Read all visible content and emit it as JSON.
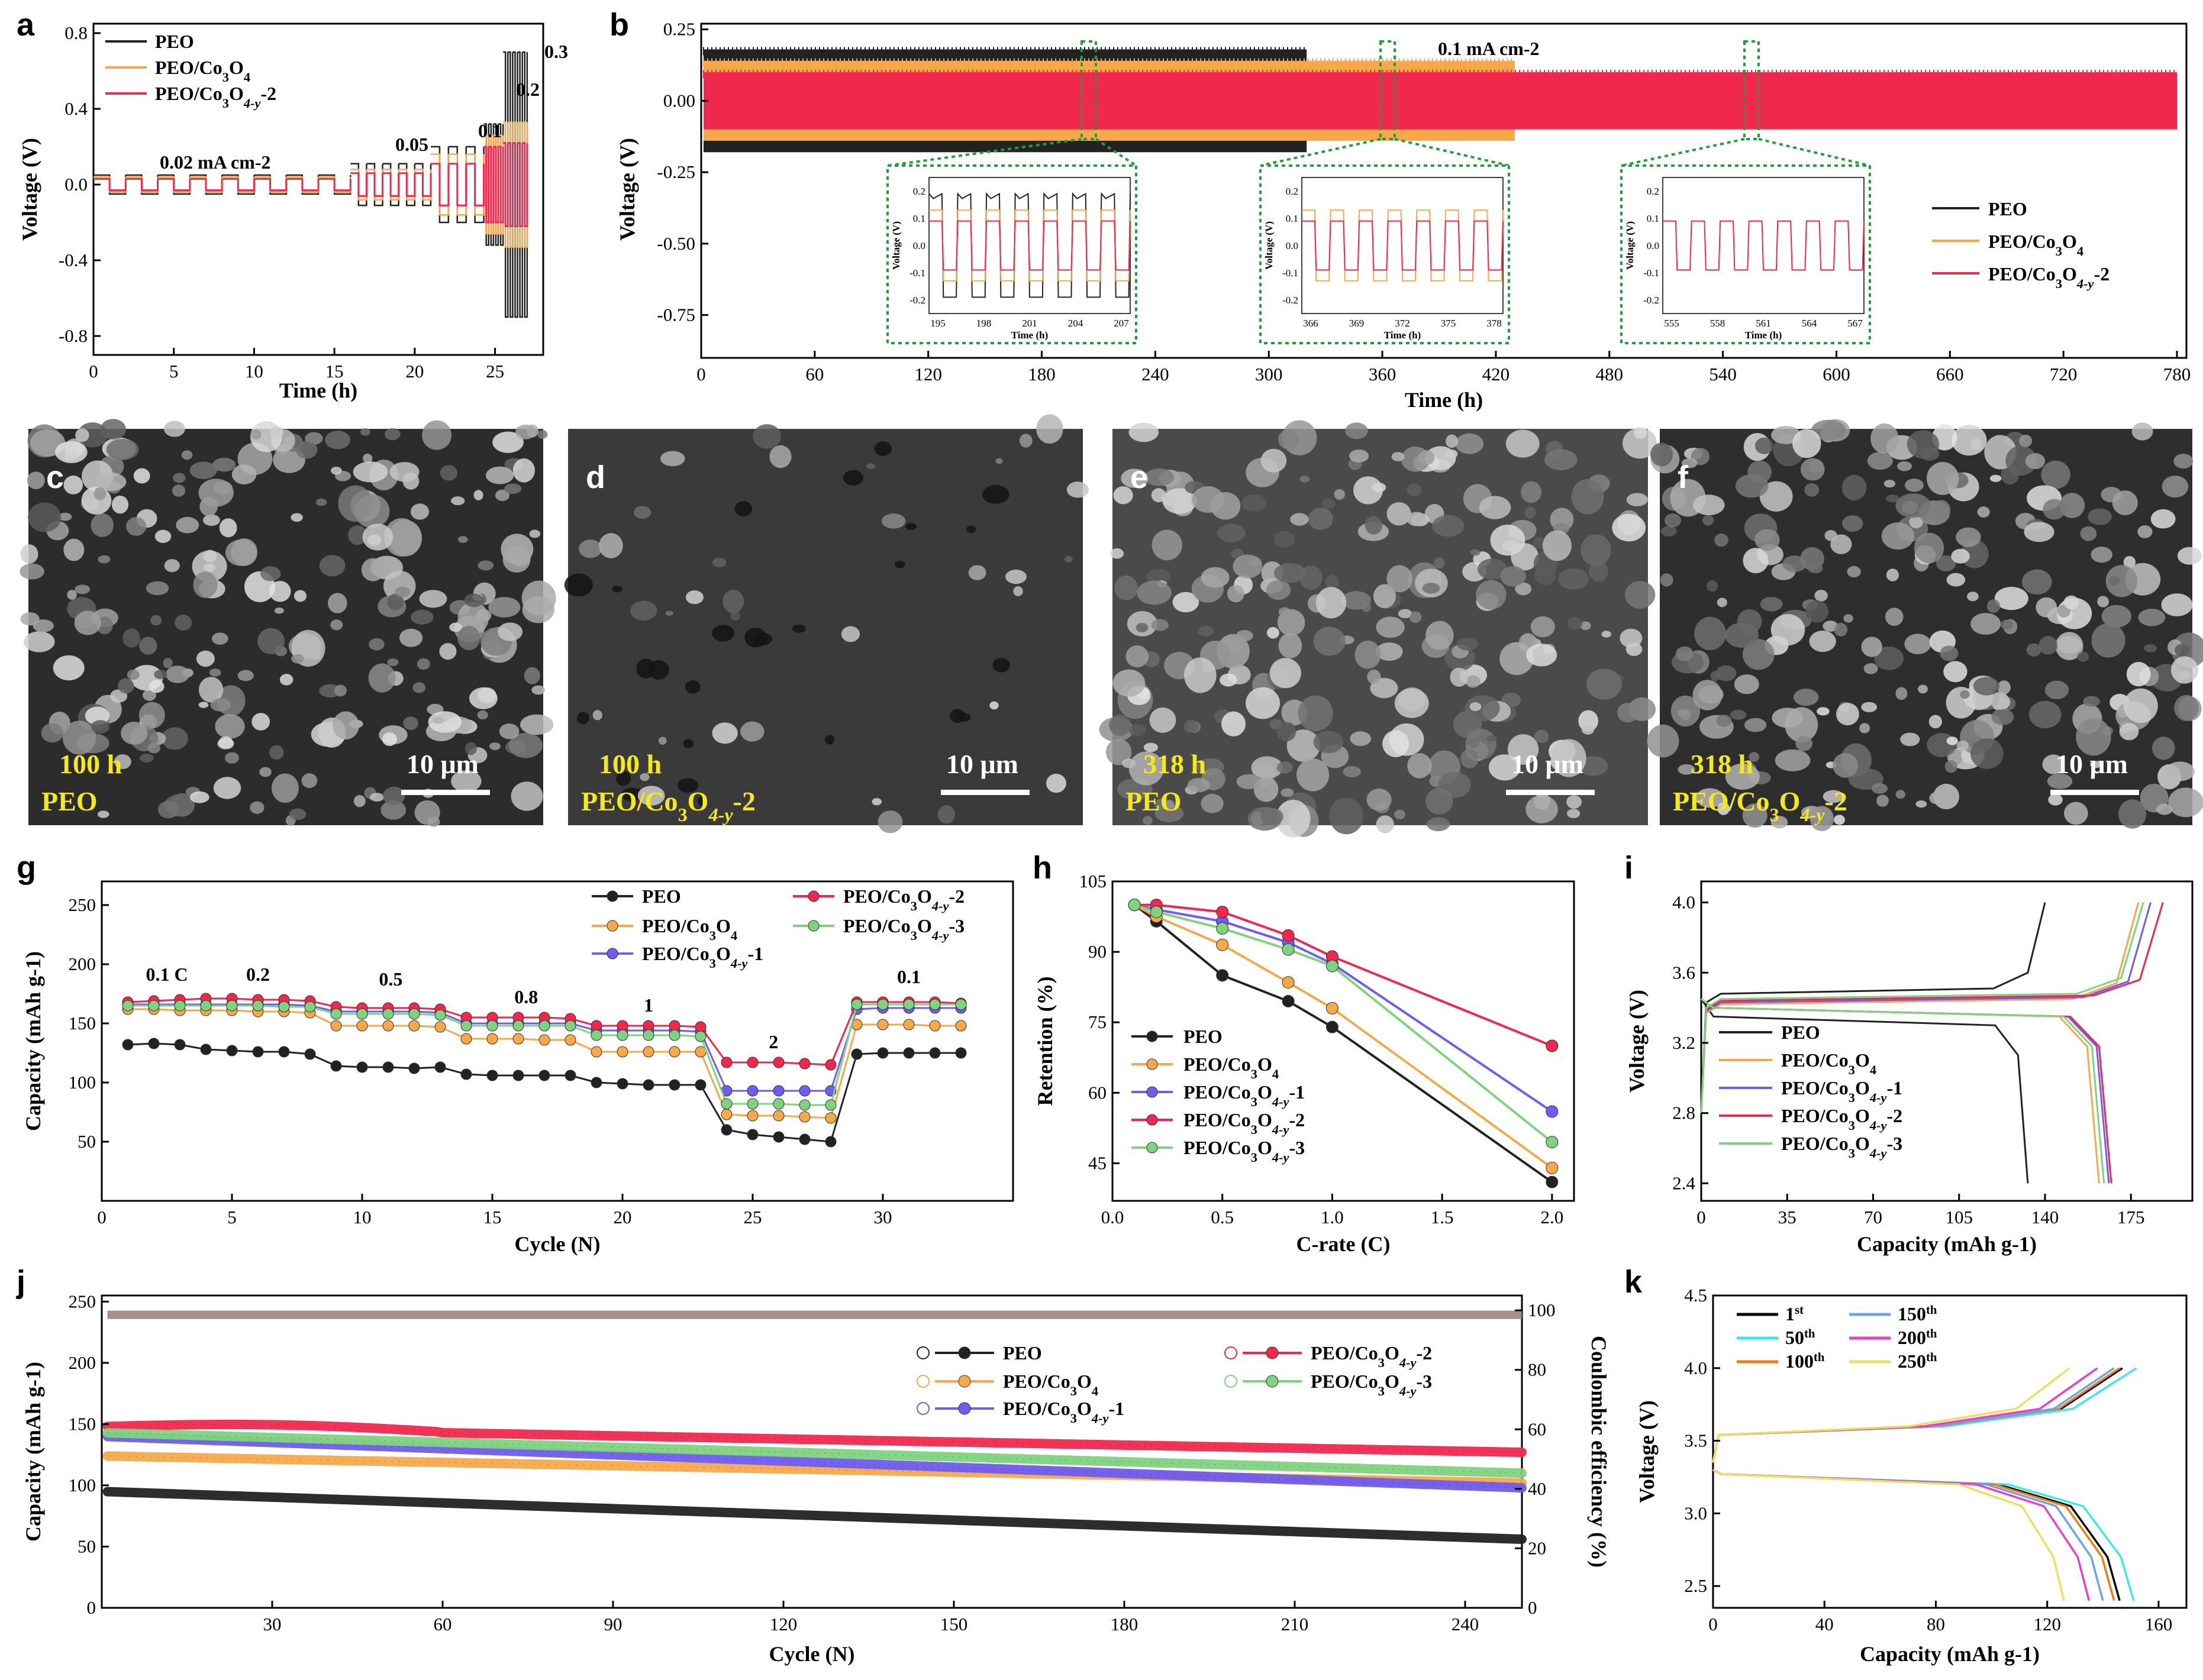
{
  "colors": {
    "PEO": "#222222",
    "Co3O4": "#f7a94a",
    "y1": "#6f5cf0",
    "y2": "#f0284e",
    "y3": "#7fd37f",
    "green_box": "#1f9e3a",
    "sem_text": "#f5ea18",
    "sem_label": "#ffffff"
  },
  "panels": {
    "a": "a",
    "b": "b",
    "c": "c",
    "d": "d",
    "e": "e",
    "f": "f",
    "g": "g",
    "h": "h",
    "i": "i",
    "j": "j",
    "k": "k"
  },
  "series_names": {
    "PEO": "PEO",
    "Co3O4": "PEO/Co3O4",
    "y1": "PEO/Co3O4-y-1",
    "y2": "PEO/Co3O4-y-2",
    "y3": "PEO/Co3O4-y-3"
  },
  "sem": [
    {
      "time": "100 h",
      "sample": "PEO",
      "scale": "10 μm",
      "tone": "#2c2c2c"
    },
    {
      "time": "100 h",
      "sample": "PEO/Co3O4-y-2",
      "scale": "10 μm",
      "tone": "#3a3a3a"
    },
    {
      "time": "318 h",
      "sample": "PEO",
      "scale": "10 μm",
      "tone": "#4a4a4a"
    },
    {
      "time": "318 h",
      "sample": "PEO/Co3O4-y-2",
      "scale": "10 μm",
      "tone": "#2e2e2e"
    }
  ],
  "chart_data": [
    {
      "id": "a",
      "type": "line",
      "xlabel": "Time (h)",
      "ylabel": "Voltage (V)",
      "xlim": [
        0,
        28
      ],
      "ylim": [
        -0.9,
        0.85
      ],
      "xticks": [
        0,
        5,
        10,
        15,
        20,
        25
      ],
      "yticks": [
        -0.8,
        -0.4,
        0.0,
        0.4,
        0.8
      ],
      "legend": [
        "PEO",
        "PEO/Co3O4",
        "PEO/Co3O4-y-2"
      ],
      "annotations": [
        "0.02 mA cm-2",
        "0.05",
        "0.1",
        "0.2",
        "0.3"
      ],
      "steps": [
        {
          "current": 0.02,
          "t": [
            0,
            16
          ],
          "amp": {
            "PEO": 0.05,
            "Co3O4": 0.04,
            "y2": 0.03
          }
        },
        {
          "current": 0.05,
          "t": [
            16,
            21
          ],
          "amp": {
            "PEO": 0.11,
            "Co3O4": 0.08,
            "y2": 0.06
          }
        },
        {
          "current": 0.1,
          "t": [
            21,
            24.3
          ],
          "amp": {
            "PEO": 0.2,
            "Co3O4": 0.16,
            "y2": 0.11
          }
        },
        {
          "current": 0.2,
          "t": [
            24.3,
            25.5
          ],
          "amp": {
            "PEO": 0.32,
            "Co3O4": 0.26,
            "y2": 0.2
          }
        },
        {
          "current": 0.3,
          "t": [
            25.5,
            27
          ],
          "amp": {
            "PEO": 0.7,
            "Co3O4": 0.33,
            "y2": 0.22
          }
        }
      ]
    },
    {
      "id": "b",
      "type": "line",
      "xlabel": "Time (h)",
      "ylabel": "Voltage (V)",
      "xlim": [
        0,
        785
      ],
      "ylim": [
        -0.9,
        0.27
      ],
      "xticks": [
        0,
        60,
        120,
        180,
        240,
        300,
        360,
        420,
        480,
        540,
        600,
        660,
        720,
        780
      ],
      "yticks": [
        0.25,
        0.0,
        -0.25,
        -0.5,
        -0.75
      ],
      "annotation": "0.1 mA cm-2",
      "legend": [
        "PEO",
        "PEO/Co3O4",
        "PEO/Co3O4-y-2"
      ],
      "bands": [
        {
          "series": "PEO",
          "t": [
            0,
            320
          ],
          "amp": 0.18
        },
        {
          "series": "Co3O4",
          "t": [
            0,
            430
          ],
          "amp": 0.14
        },
        {
          "series": "y2",
          "t": [
            0,
            780
          ],
          "amp": 0.1
        }
      ],
      "insets": [
        {
          "xticks": [
            195,
            198,
            201,
            204,
            207
          ],
          "yticks": [
            0.2,
            0.1,
            0.0,
            -0.1,
            -0.2
          ],
          "xlabel": "Time (h)",
          "ylabel": "Voltage (V)"
        },
        {
          "xticks": [
            366,
            369,
            372,
            375,
            378
          ],
          "yticks": [
            0.2,
            0.1,
            0.0,
            -0.1,
            -0.2
          ],
          "xlabel": "Time (h)",
          "ylabel": "Voltage (V)"
        },
        {
          "xticks": [
            555,
            558,
            561,
            564,
            567
          ],
          "yticks": [
            0.2,
            0.1,
            0.0,
            -0.1,
            -0.2
          ],
          "xlabel": "Time (h)",
          "ylabel": "Voltage (V)"
        }
      ]
    },
    {
      "id": "g",
      "type": "scatter-line",
      "xlabel": "Cycle (N)",
      "ylabel": "Capacity (mAh g-1)",
      "xlim": [
        0,
        35
      ],
      "ylim": [
        0,
        270
      ],
      "xticks": [
        0,
        5,
        10,
        15,
        20,
        25,
        30
      ],
      "yticks": [
        50,
        100,
        150,
        200,
        250
      ],
      "annotations": [
        "0.1 C",
        "0.2",
        "0.5",
        "0.8",
        "1",
        "2",
        "0.1"
      ],
      "series": [
        {
          "name": "PEO",
          "key": "PEO",
          "values": [
            132,
            133,
            132,
            128,
            127,
            126,
            126,
            124,
            114,
            113,
            113,
            112,
            113,
            107,
            106,
            106,
            106,
            106,
            100,
            99,
            98,
            98,
            98,
            60,
            56,
            54,
            52,
            50,
            124,
            125,
            125,
            125,
            125
          ]
        },
        {
          "name": "PEO/Co3O4",
          "key": "Co3O4",
          "values": [
            162,
            162,
            161,
            161,
            161,
            160,
            160,
            159,
            148,
            148,
            148,
            148,
            147,
            137,
            137,
            137,
            136,
            136,
            126,
            126,
            126,
            126,
            126,
            73,
            72,
            72,
            71,
            70,
            149,
            149,
            149,
            148,
            148
          ]
        },
        {
          "name": "PEO/Co3O4-y-1",
          "key": "y1",
          "values": [
            166,
            166,
            166,
            166,
            166,
            166,
            166,
            165,
            160,
            160,
            160,
            160,
            159,
            150,
            150,
            150,
            150,
            150,
            144,
            144,
            144,
            144,
            143,
            93,
            93,
            93,
            93,
            93,
            162,
            163,
            163,
            163,
            163
          ]
        },
        {
          "name": "PEO/Co3O4-y-2",
          "key": "y2",
          "values": [
            168,
            169,
            170,
            171,
            171,
            170,
            170,
            169,
            164,
            163,
            163,
            163,
            162,
            155,
            155,
            155,
            155,
            154,
            148,
            148,
            148,
            148,
            147,
            117,
            117,
            117,
            116,
            115,
            168,
            168,
            168,
            168,
            167
          ]
        },
        {
          "name": "PEO/Co3O4-y-3",
          "key": "y3",
          "values": [
            165,
            165,
            165,
            165,
            165,
            165,
            164,
            164,
            158,
            158,
            158,
            158,
            157,
            148,
            148,
            148,
            148,
            148,
            140,
            140,
            140,
            140,
            139,
            82,
            82,
            82,
            81,
            81,
            166,
            166,
            166,
            166,
            166
          ]
        }
      ]
    },
    {
      "id": "h",
      "type": "line",
      "xlabel": "C-rate (C)",
      "ylabel": "Retention (%)",
      "xlim": [
        0,
        2.1
      ],
      "ylim": [
        37,
        105
      ],
      "xticks": [
        0.0,
        0.5,
        1.0,
        1.5,
        2.0
      ],
      "yticks": [
        45,
        60,
        75,
        90,
        105
      ],
      "x": [
        0.1,
        0.2,
        0.5,
        0.8,
        1.0,
        2.0
      ],
      "series": [
        {
          "name": "PEO",
          "key": "PEO",
          "values": [
            100,
            96.5,
            85,
            79.5,
            74,
            41
          ]
        },
        {
          "name": "PEO/Co3O4",
          "key": "Co3O4",
          "values": [
            100,
            97.5,
            91.5,
            83.5,
            78,
            44
          ]
        },
        {
          "name": "PEO/Co3O4-y-1",
          "key": "y1",
          "values": [
            100,
            99,
            96.5,
            92,
            87.5,
            56
          ]
        },
        {
          "name": "PEO/Co3O4-y-2",
          "key": "y2",
          "values": [
            100,
            100,
            98.5,
            93.5,
            89,
            70
          ]
        },
        {
          "name": "PEO/Co3O4-y-3",
          "key": "y3",
          "values": [
            100,
            98.5,
            95,
            90.5,
            87,
            49.5
          ]
        }
      ]
    },
    {
      "id": "i",
      "type": "line",
      "xlabel": "Capacity (mAh g-1)",
      "ylabel": "Voltage (V)",
      "xlim": [
        0,
        200
      ],
      "ylim": [
        2.3,
        4.12
      ],
      "xticks": [
        0,
        35,
        70,
        105,
        140,
        175
      ],
      "yticks": [
        2.4,
        2.8,
        3.2,
        3.6,
        4.0
      ],
      "series": [
        {
          "name": "PEO",
          "key": "PEO",
          "cap": 133,
          "plateau": 3.48
        },
        {
          "name": "PEO/Co3O4",
          "key": "Co3O4",
          "cap": 162,
          "plateau": 3.42
        },
        {
          "name": "PEO/Co3O4-y-1",
          "key": "y1",
          "cap": 166,
          "plateau": 3.43
        },
        {
          "name": "PEO/Co3O4-y-2",
          "key": "y2",
          "cap": 167,
          "plateau": 3.44
        },
        {
          "name": "PEO/Co3O4-y-3",
          "key": "y3",
          "cap": 164,
          "plateau": 3.45
        }
      ]
    },
    {
      "id": "j",
      "type": "scatter",
      "xlabel": "Cycle (N)",
      "ylabel": "Capacity (mAh g-1)",
      "y2label": "Coulombic efficiency (%)",
      "xlim": [
        0,
        250
      ],
      "ylim": [
        0,
        255
      ],
      "y2lim": [
        0,
        105
      ],
      "xticks": [
        30,
        60,
        90,
        120,
        150,
        180,
        210,
        240
      ],
      "yticks": [
        0,
        50,
        100,
        150,
        200,
        250
      ],
      "y2ticks": [
        0,
        20,
        40,
        60,
        80,
        100
      ],
      "series": [
        {
          "name": "PEO",
          "key": "PEO",
          "start": 95,
          "end": 56
        },
        {
          "name": "PEO/Co3O4",
          "key": "Co3O4",
          "start": 124,
          "end": 102
        },
        {
          "name": "PEO/Co3O4-y-1",
          "key": "y1",
          "start": 140,
          "end": 98
        },
        {
          "name": "PEO/Co3O4-y-2",
          "key": "y2",
          "start": 148,
          "end": 127
        },
        {
          "name": "PEO/Co3O4-y-3",
          "key": "y3",
          "start": 143,
          "end": 110
        }
      ],
      "coulombic_efficiency": 98.5
    },
    {
      "id": "k",
      "type": "line",
      "xlabel": "Capacity (mAh g-1)",
      "ylabel": "Voltage (V)",
      "xlim": [
        0,
        170
      ],
      "ylim": [
        2.35,
        4.5
      ],
      "xticks": [
        0,
        40,
        80,
        120,
        160
      ],
      "yticks": [
        2.5,
        3.0,
        3.5,
        4.0,
        4.5
      ],
      "series": [
        {
          "name": "1st",
          "color": "#000000",
          "cap": 146
        },
        {
          "name": "50th",
          "color": "#3ee6ef",
          "cap": 151
        },
        {
          "name": "100th",
          "color": "#f07b10",
          "cap": 144
        },
        {
          "name": "150th",
          "color": "#6aa5ec",
          "cap": 140
        },
        {
          "name": "200th",
          "color": "#f03cc6",
          "cap": 135
        },
        {
          "name": "250th",
          "color": "#ede060",
          "cap": 126
        }
      ]
    }
  ]
}
